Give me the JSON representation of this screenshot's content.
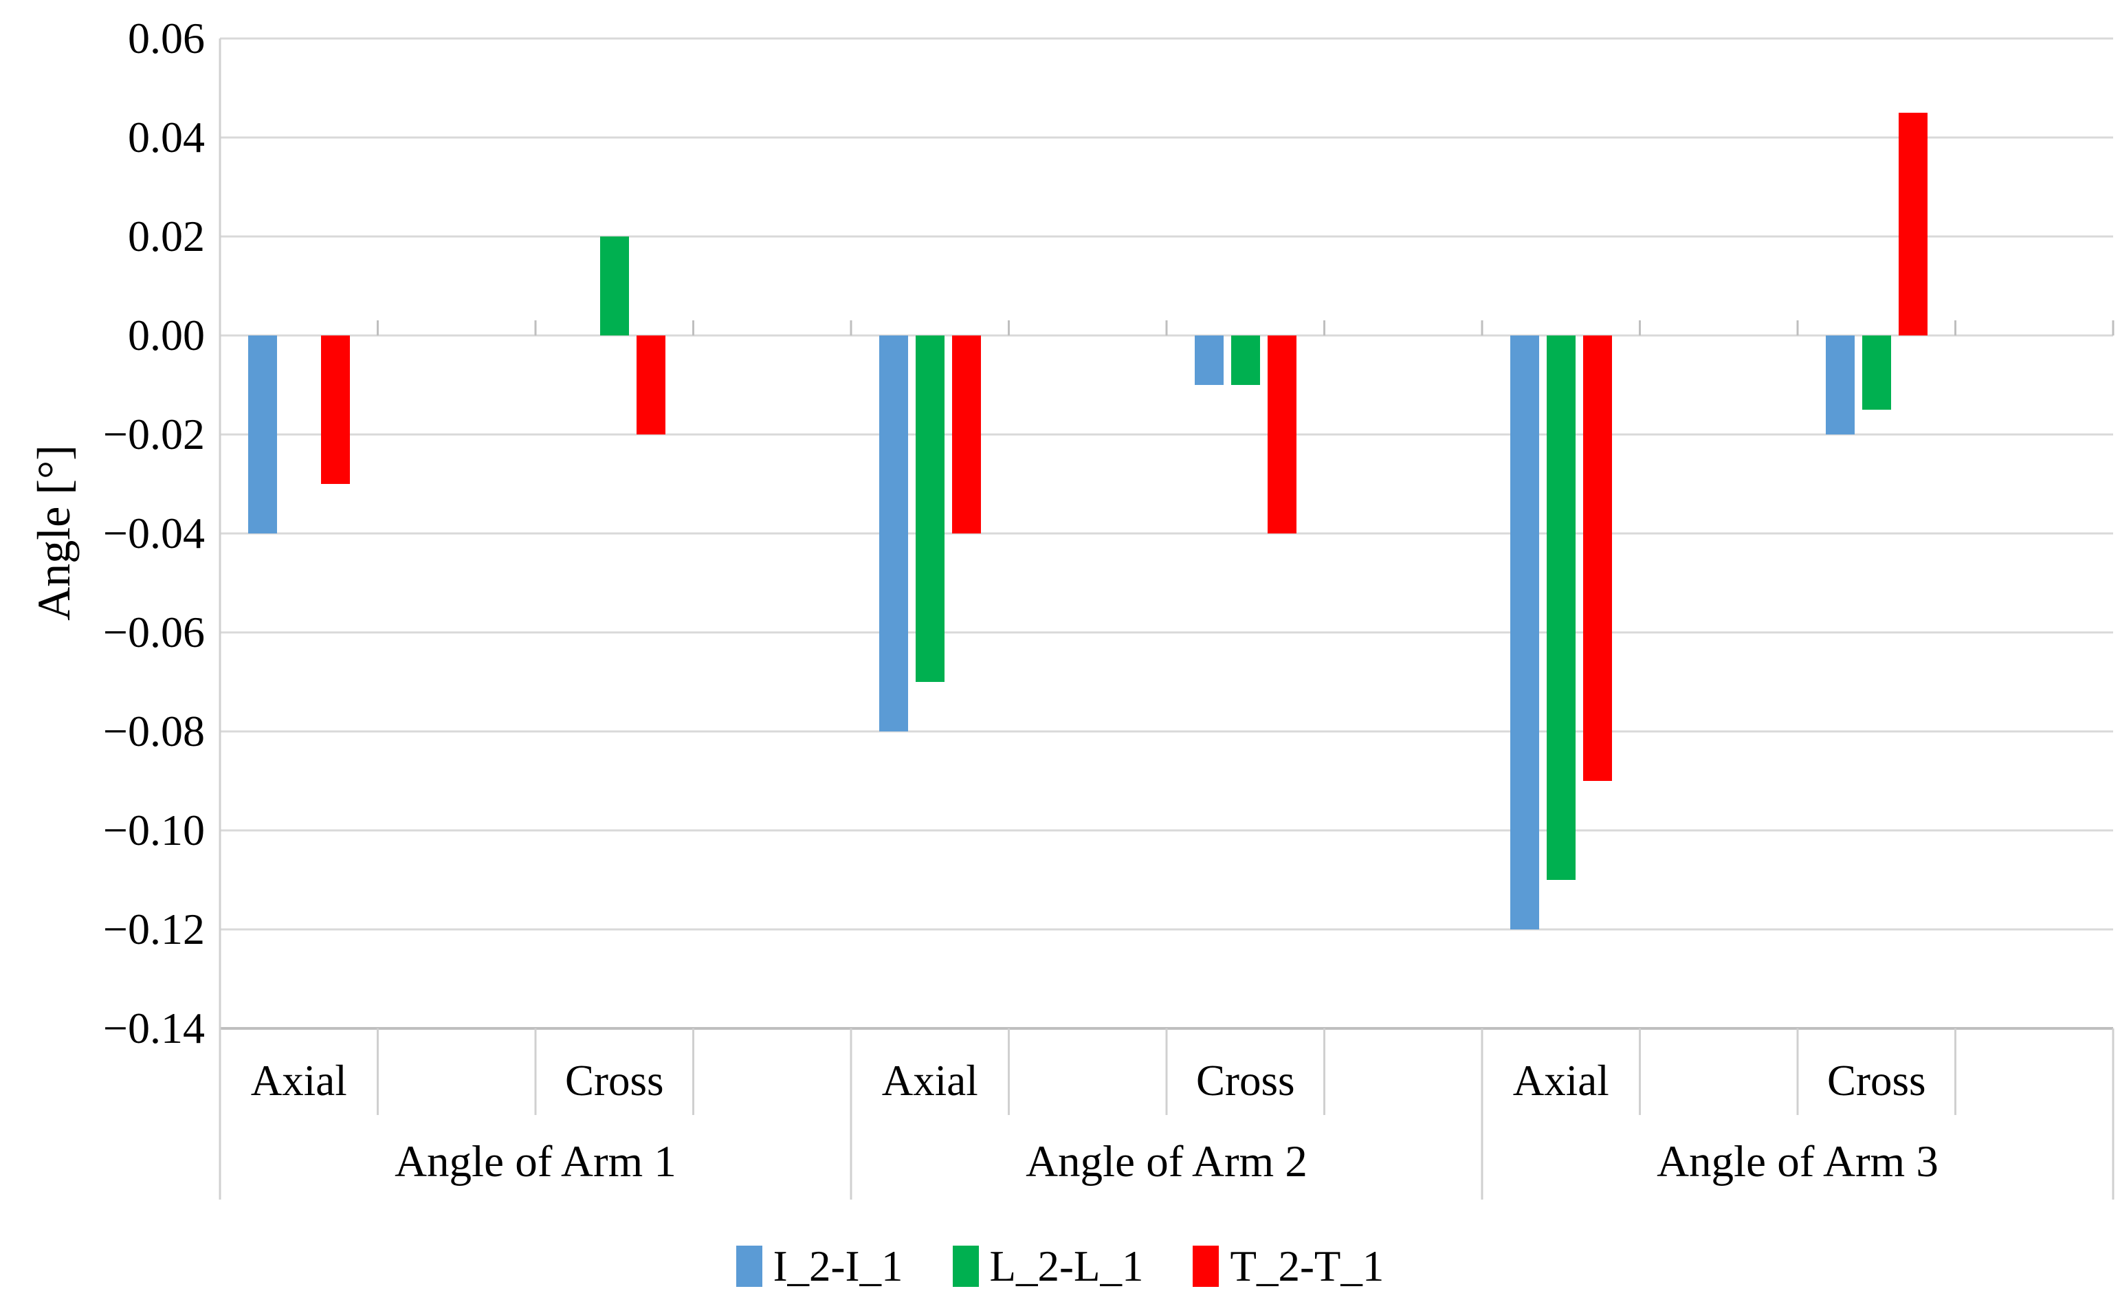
{
  "figure": {
    "y_axis_title": "Angle [°]"
  },
  "chart_data": {
    "type": "bar",
    "title": "",
    "xlabel": "",
    "ylabel": "Angle [°]",
    "ylim": [
      -0.14,
      0.06
    ],
    "ytick_step": 0.02,
    "yticks": [
      0.06,
      0.04,
      0.02,
      0.0,
      -0.02,
      -0.04,
      -0.06,
      -0.08,
      -0.1,
      -0.12,
      -0.14
    ],
    "grid": true,
    "legend_position": "bottom",
    "groups": [
      "Angle of Arm 1",
      "Angle of Arm 2",
      "Angle of Arm 3"
    ],
    "subcategories": [
      "Axial",
      "Cross"
    ],
    "categories": [
      "Angle of Arm 1 / Axial",
      "Angle of Arm 1 / Cross",
      "Angle of Arm 2 / Axial",
      "Angle of Arm 2 / Cross",
      "Angle of Arm 3 / Axial",
      "Angle of Arm 3 / Cross"
    ],
    "series": [
      {
        "name": "I_2-I_1",
        "color": "#5B9BD5",
        "values": [
          -0.04,
          0,
          -0.08,
          -0.01,
          -0.12,
          -0.02
        ]
      },
      {
        "name": "L_2-L_1",
        "color": "#00B050",
        "values": [
          0,
          0.02,
          -0.07,
          -0.01,
          -0.11,
          -0.015
        ]
      },
      {
        "name": "T_2-T_1",
        "color": "#FF0000",
        "values": [
          -0.03,
          -0.02,
          -0.04,
          -0.04,
          -0.09,
          0.045
        ]
      }
    ],
    "colors": {
      "gridline": "#D9D9D9",
      "axis_line": "#BFBFBF",
      "divider": "#D0D0D0",
      "text": "#000000",
      "background": "#FFFFFF"
    }
  }
}
